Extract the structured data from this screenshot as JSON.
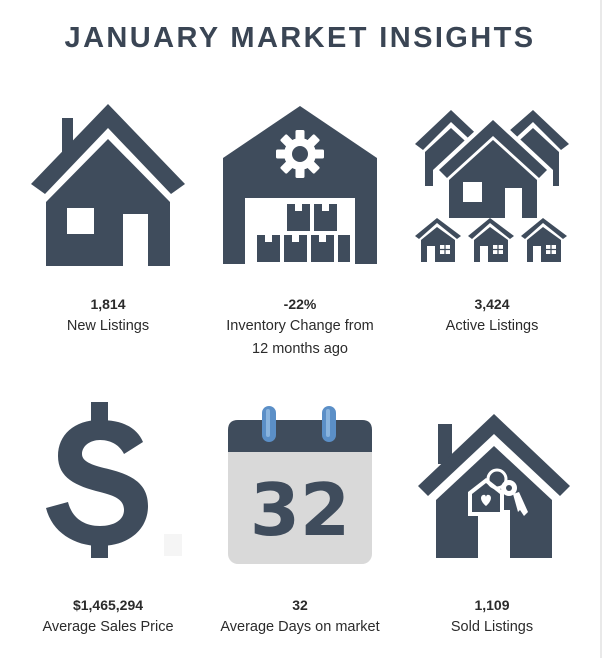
{
  "title": "JANUARY MARKET INSIGHTS",
  "colors": {
    "icon": "#3f4c5c",
    "calendar_page": "#d9d9d9",
    "calendar_ring": "#5b8fc7"
  },
  "stats": [
    {
      "icon": "house-icon",
      "value": "1,814",
      "label_lines": [
        "New Listings"
      ]
    },
    {
      "icon": "warehouse-gear-icon",
      "value": "-22%",
      "label_lines": [
        "Inventory Change from",
        "12 months ago"
      ]
    },
    {
      "icon": "neighborhood-icon",
      "value": "3,424",
      "label_lines": [
        "Active Listings"
      ]
    },
    {
      "icon": "dollar-sign-icon",
      "value": "$1,465,294",
      "label_lines": [
        "Average Sales Price"
      ]
    },
    {
      "icon": "calendar-icon",
      "calendar_number": "32",
      "value": "32",
      "label_lines": [
        "Average Days on market"
      ]
    },
    {
      "icon": "house-keys-icon",
      "value": "1,109",
      "label_lines": [
        "Sold Listings"
      ]
    }
  ]
}
